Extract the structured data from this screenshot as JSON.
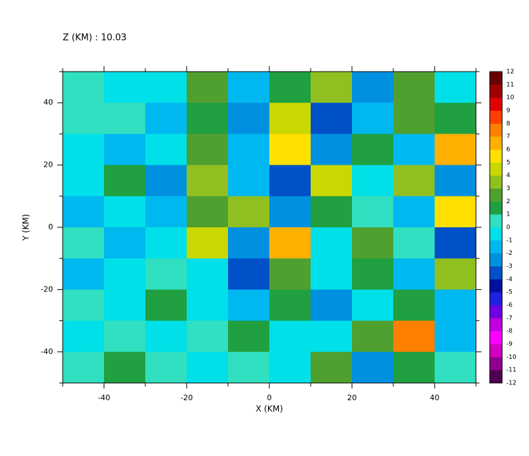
{
  "chart_data": {
    "type": "heatmap",
    "title": "Z (KM) : 10.03",
    "x_label": "X (KM)",
    "y_label": "Y (KM)",
    "xlim": [
      -50,
      50
    ],
    "ylim": [
      -50,
      50
    ],
    "xticks": [
      -40,
      -20,
      0,
      20,
      40
    ],
    "yticks": [
      -40,
      -20,
      0,
      20,
      40
    ],
    "xminorticks": [
      -50,
      -30,
      -10,
      10,
      30,
      50
    ],
    "yminorticks": [
      -50,
      -30,
      -10,
      10,
      30,
      50
    ],
    "x": [
      -45,
      -35,
      -25,
      -15,
      -5,
      5,
      15,
      25,
      35,
      45
    ],
    "y": [
      45,
      35,
      25,
      15,
      5,
      -5,
      -15,
      -25,
      -35,
      -45
    ],
    "z": [
      [
        0,
        -1,
        -1,
        2,
        -2,
        1,
        3,
        -3,
        2,
        -1
      ],
      [
        0,
        0,
        -2,
        1,
        -3,
        4,
        -4,
        -2,
        2,
        1
      ],
      [
        -1,
        -2,
        -1,
        2,
        -2,
        5,
        -3,
        1,
        -2,
        6
      ],
      [
        -1,
        1,
        -3,
        3,
        -2,
        -4,
        4,
        -1,
        3,
        -3
      ],
      [
        -2,
        -1,
        -2,
        2,
        3,
        -3,
        1,
        0,
        -2,
        5
      ],
      [
        0,
        -2,
        -1,
        4,
        -3,
        6,
        -1,
        2,
        0,
        -4
      ],
      [
        -2,
        -1,
        0,
        -1,
        -4,
        2,
        -1,
        1,
        -2,
        3
      ],
      [
        0,
        -1,
        1,
        -1,
        -2,
        1,
        -3,
        -1,
        1,
        -2
      ],
      [
        -1,
        0,
        -1,
        0,
        1,
        -1,
        -1,
        2,
        7,
        -2
      ],
      [
        0,
        1,
        0,
        -1,
        0,
        -1,
        2,
        -3,
        1,
        0
      ]
    ],
    "colorbar": {
      "levels": [
        -12,
        -11,
        -10,
        -9,
        -8,
        -7,
        -6,
        -5,
        -4,
        -3,
        -2,
        -1,
        0,
        1,
        2,
        3,
        4,
        5,
        6,
        7,
        8,
        9,
        10,
        11,
        12
      ],
      "colors": [
        "#500050",
        "#900090",
        "#d000c0",
        "#ff00ff",
        "#c000e0",
        "#7000e0",
        "#2020e0",
        "#0010a0",
        "#0050c8",
        "#0090e0",
        "#00b8f0",
        "#00e0e8",
        "#30e0c0",
        "#20a040",
        "#50a030",
        "#90c020",
        "#c8d800",
        "#ffe000",
        "#ffb000",
        "#ff7f00",
        "#ff4000",
        "#e00000",
        "#a00000",
        "#6b0000"
      ]
    }
  }
}
